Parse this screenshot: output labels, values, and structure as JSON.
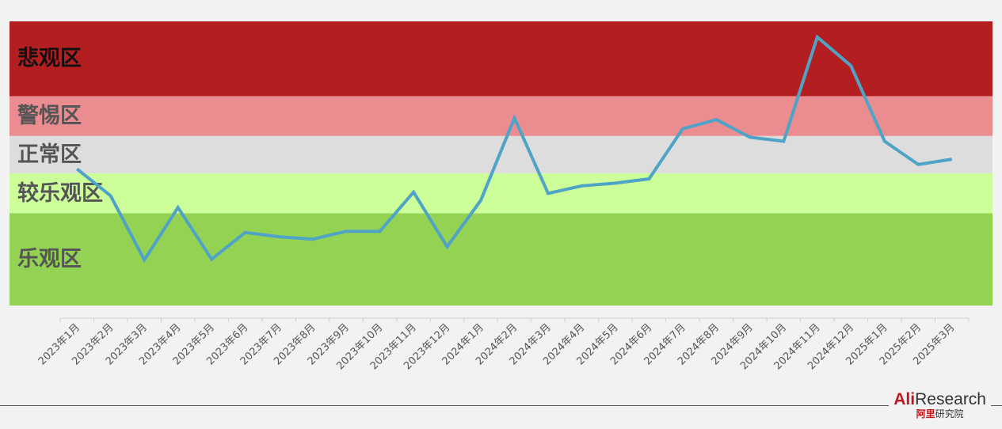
{
  "chart_data": {
    "type": "line",
    "title": "",
    "xlabel": "",
    "ylabel": "",
    "categories": [
      "2023年1月",
      "2023年2月",
      "2023年3月",
      "2023年4月",
      "2023年5月",
      "2023年6月",
      "2023年7月",
      "2023年8月",
      "2023年9月",
      "2023年10月",
      "2023年11月",
      "2023年12月",
      "2024年1月",
      "2024年2月",
      "2024年3月",
      "2024年4月",
      "2024年5月",
      "2024年6月",
      "2024年7月",
      "2024年8月",
      "2024年9月",
      "2024年10月",
      "2024年11月",
      "2024年12月",
      "2025年1月",
      "2025年2月",
      "2025年3月"
    ],
    "series": [
      {
        "name": "",
        "color": "#4fa3c7",
        "values": [
          40.8,
          30.0,
          4.3,
          25.3,
          4.6,
          15.3,
          13.6,
          12.6,
          15.8,
          15.8,
          31.5,
          9.6,
          28.2,
          61.2,
          31.0,
          34.0,
          35.1,
          36.8,
          56.9,
          60.6,
          53.5,
          51.9,
          93.7,
          82.2,
          51.9,
          42.6,
          44.7
        ]
      }
    ],
    "ylim": [
      -14,
      100
    ],
    "grid": false,
    "legend": "none",
    "zones": [
      {
        "label": "悲观区",
        "from": 70,
        "to": 100,
        "color": "#b31f21",
        "text_color": "#111111"
      },
      {
        "label": "警惕区",
        "from": 54,
        "to": 70,
        "color": "#ea8c90",
        "text_color": "#555555"
      },
      {
        "label": "正常区",
        "from": 39,
        "to": 54,
        "color": "#dddddd",
        "text_color": "#555555"
      },
      {
        "label": "较乐观区",
        "from": 23,
        "to": 39,
        "color": "#ccff99",
        "text_color": "#555555"
      },
      {
        "label": "乐观区",
        "from": -14,
        "to": 23,
        "color": "#94d254",
        "text_color": "#555555"
      }
    ]
  },
  "logo": {
    "ali": "Ali",
    "research": "Research",
    "cn_red": "阿里",
    "cn_dark": "研究院"
  }
}
